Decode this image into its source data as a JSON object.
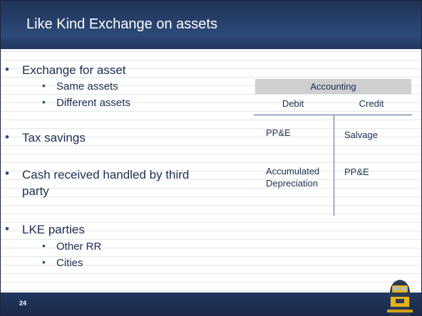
{
  "header": {
    "title": "Like Kind Exchange on assets"
  },
  "bullets": [
    {
      "text": "Exchange for asset",
      "sub": [
        "Same assets",
        "Different assets"
      ]
    },
    {
      "text": "Tax savings"
    },
    {
      "text": "Cash received handled by third party"
    },
    {
      "text": "LKE parties",
      "sub": [
        "Other RR",
        "Cities"
      ]
    }
  ],
  "t_account": {
    "title": "Accounting",
    "columns": [
      "Debit",
      "Credit"
    ],
    "debit": [
      "PP&E",
      "Accumulated Depreciation"
    ],
    "credit": [
      "Salvage",
      "PP&E"
    ]
  },
  "footer": {
    "page_number": "24"
  }
}
